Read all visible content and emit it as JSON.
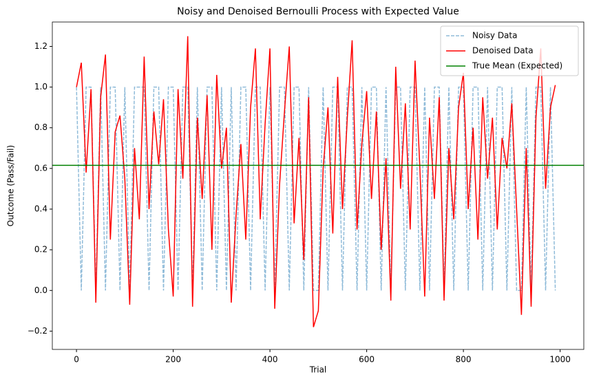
{
  "chart_data": {
    "type": "line",
    "title": "Noisy and Denoised Bernoulli Process with Expected Value",
    "xlabel": "Trial",
    "ylabel": "Outcome (Pass/Fail)",
    "x": [
      0,
      10,
      20,
      30,
      40,
      50,
      60,
      70,
      80,
      90,
      100,
      110,
      120,
      130,
      140,
      150,
      160,
      170,
      180,
      190,
      200,
      210,
      220,
      230,
      240,
      250,
      260,
      270,
      280,
      290,
      300,
      310,
      320,
      330,
      340,
      350,
      360,
      370,
      380,
      390,
      400,
      410,
      420,
      430,
      440,
      450,
      460,
      470,
      480,
      490,
      500,
      510,
      520,
      530,
      540,
      550,
      560,
      570,
      580,
      590,
      600,
      610,
      620,
      630,
      640,
      650,
      660,
      670,
      680,
      690,
      700,
      710,
      720,
      730,
      740,
      750,
      760,
      770,
      780,
      790,
      800,
      810,
      820,
      830,
      840,
      850,
      860,
      870,
      880,
      890,
      900,
      910,
      920,
      930,
      940,
      950,
      960,
      970,
      980,
      990
    ],
    "series": [
      {
        "name": "Noisy Data",
        "color": "#1f77b4",
        "dash": true,
        "values": [
          1,
          0,
          1,
          1,
          0,
          1,
          0,
          1,
          1,
          0,
          1,
          0,
          1,
          1,
          1,
          0,
          1,
          1,
          0,
          1,
          1,
          0,
          1,
          1,
          0,
          1,
          0,
          1,
          1,
          0,
          1,
          0,
          1,
          0,
          1,
          1,
          0,
          1,
          1,
          0,
          1,
          0,
          1,
          1,
          0,
          1,
          1,
          0,
          1,
          0,
          0,
          1,
          0,
          1,
          1,
          0,
          1,
          1,
          0,
          1,
          0,
          1,
          1,
          0,
          1,
          0,
          1,
          1,
          0,
          1,
          1,
          0,
          1,
          0,
          1,
          1,
          0,
          1,
          0,
          1,
          1,
          0,
          1,
          1,
          0,
          1,
          0,
          1,
          1,
          0,
          1,
          0,
          0,
          1,
          0,
          1,
          1,
          0,
          1,
          0
        ]
      },
      {
        "name": "Denoised Data",
        "color": "#ff0000",
        "dash": false,
        "values": [
          1.0,
          1.12,
          0.58,
          0.99,
          -0.06,
          0.95,
          1.16,
          0.25,
          0.78,
          0.86,
          0.55,
          -0.07,
          0.7,
          0.35,
          1.15,
          0.4,
          0.88,
          0.62,
          0.94,
          0.3,
          -0.03,
          0.99,
          0.55,
          1.25,
          -0.08,
          0.85,
          0.45,
          0.96,
          0.2,
          1.06,
          0.6,
          0.8,
          -0.06,
          0.37,
          0.72,
          0.25,
          0.9,
          1.19,
          0.35,
          0.82,
          1.19,
          -0.09,
          0.52,
          0.88,
          1.2,
          0.33,
          0.75,
          0.15,
          0.95,
          -0.18,
          -0.1,
          0.6,
          0.9,
          0.28,
          1.05,
          0.4,
          0.85,
          1.23,
          0.3,
          0.72,
          0.98,
          0.45,
          0.88,
          0.2,
          0.65,
          -0.05,
          1.1,
          0.5,
          0.92,
          0.3,
          1.13,
          0.6,
          -0.03,
          0.85,
          0.45,
          0.95,
          -0.05,
          0.7,
          0.35,
          0.9,
          1.07,
          0.4,
          0.8,
          0.25,
          0.95,
          0.55,
          0.85,
          0.3,
          0.75,
          0.6,
          0.92,
          0.4,
          -0.12,
          0.7,
          -0.08,
          0.85,
          1.19,
          0.5,
          0.9,
          1.01
        ]
      }
    ],
    "reference_line": {
      "name": "True Mean (Expected)",
      "color": "#008000",
      "value": 0.615
    },
    "xlim": [
      -49.95,
      1048.95
    ],
    "ylim": [
      -0.29,
      1.32
    ],
    "xticks": [
      0,
      200,
      400,
      600,
      800,
      1000
    ],
    "yticks": [
      {
        "value": -0.2,
        "label": "−0.2"
      },
      {
        "value": 0,
        "label": "0.0"
      },
      0.2,
      0.4,
      0.6,
      0.8,
      {
        "value": 1,
        "label": "1.0"
      },
      1.2
    ],
    "legend": "upper right"
  }
}
